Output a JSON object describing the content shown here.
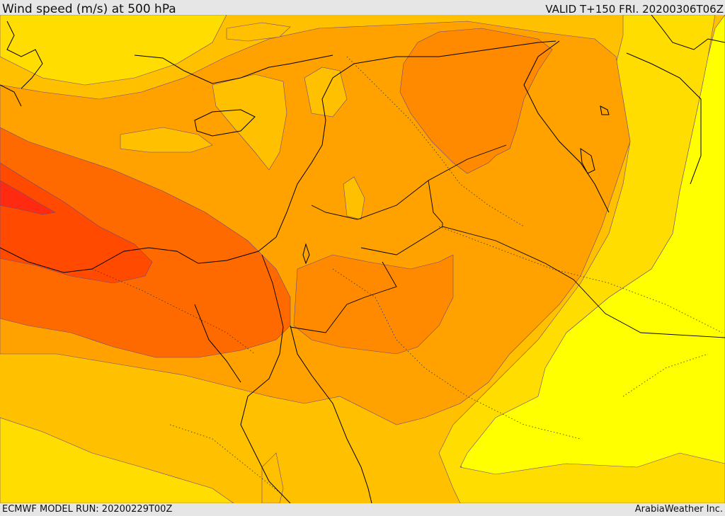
{
  "header": {
    "title": "Wind speed (m/s) at 500 hPa",
    "valid": "VALID T+150 FRI. 20200306T06Z"
  },
  "footer": {
    "model_run": "ECMWF MODEL RUN: 20200229T00Z",
    "credit": "ArabiaWeather Inc."
  },
  "map": {
    "field": "wind speed at 500 hPa",
    "colors": {
      "band_1": "#ffff00",
      "band_2": "#ffdd00",
      "band_3": "#ffc000",
      "band_4": "#ffa200",
      "band_5": "#ff8a00",
      "band_6": "#ff6a00",
      "band_7": "#ff4a00",
      "band_8": "#ff2a10",
      "coastline": "#000000",
      "contour": "#6a4a80"
    }
  }
}
